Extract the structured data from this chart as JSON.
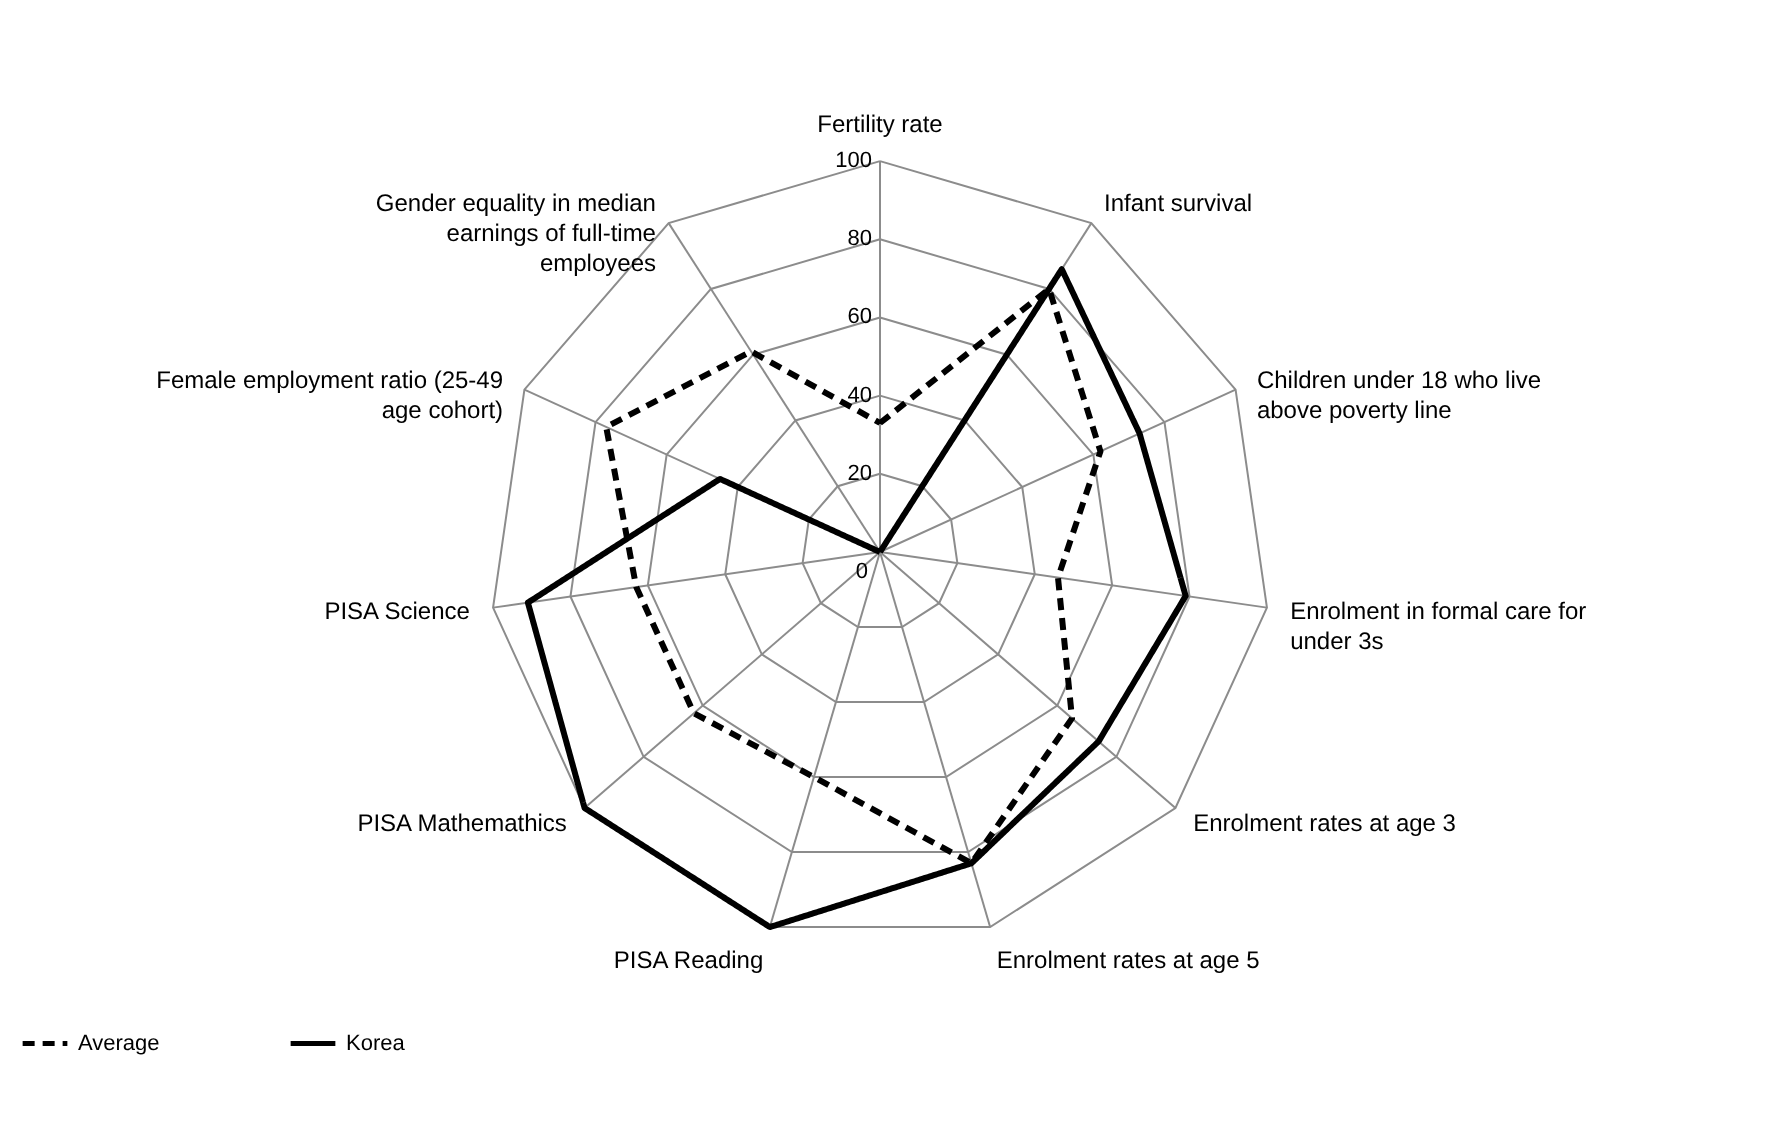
{
  "chart_data": {
    "type": "radar",
    "categories": [
      "Fertility rate",
      "Infant survival",
      "Children under 18 who live above poverty line",
      "Enrolment in formal care for under 3s",
      "Enrolment rates at age 3",
      "Enrolment rates at age 5",
      "PISA Reading",
      "PISA Mathemathics",
      "PISA Science",
      "Female employment ratio (25-49 age cohort)",
      "Gender equality in median earnings of full-time employees"
    ],
    "series": [
      {
        "name": "Average",
        "color": "#000000",
        "line_style": "dashed",
        "values": [
          33,
          80,
          62,
          46,
          65,
          83,
          60,
          63,
          63,
          77,
          61
        ]
      },
      {
        "name": "Korea",
        "color": "#000000",
        "line_style": "solid",
        "values": [
          0,
          86,
          73,
          79,
          74,
          83,
          100,
          100,
          91,
          45,
          0
        ]
      }
    ],
    "ylim": [
      0,
      100
    ],
    "yticks": [
      0,
      20,
      40,
      60,
      80,
      100
    ],
    "grid": true,
    "legend": "bottom"
  }
}
